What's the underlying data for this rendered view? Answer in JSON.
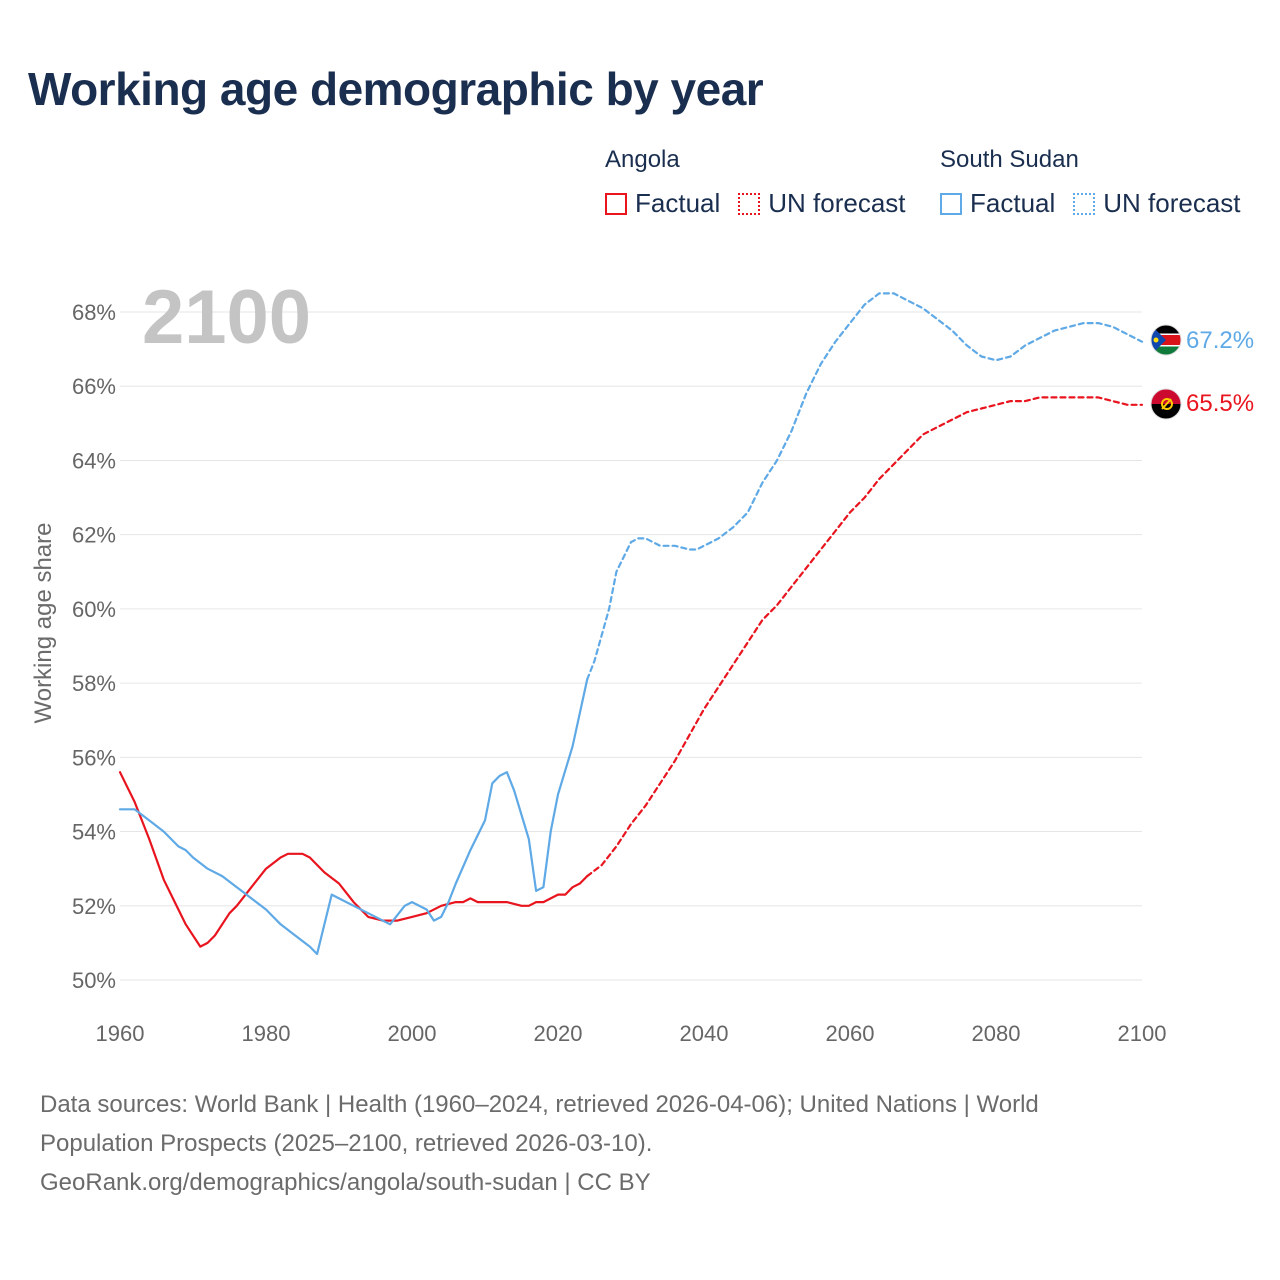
{
  "title": "Working age demographic by year",
  "year_display": "2100",
  "legend": {
    "angola": {
      "name": "Angola",
      "factual": "Factual",
      "forecast": "UN forecast",
      "color": "#e8141e"
    },
    "south_sudan": {
      "name": "South Sudan",
      "factual": "Factual",
      "forecast": "UN forecast",
      "color": "#5ea9e6"
    }
  },
  "end_labels": {
    "angola": "65.5%",
    "south_sudan": "67.2%"
  },
  "footer": {
    "line1": "Data sources: World Bank | Health (1960–2024, retrieved 2026-04-06); United Nations | World",
    "line2": "Population Prospects (2025–2100, retrieved 2026-03-10).",
    "line3": "GeoRank.org/demographics/angola/south-sudan | CC BY"
  },
  "chart_data": {
    "type": "line",
    "title": "Working age demographic by year",
    "xlabel": "",
    "ylabel": "Working age share",
    "xlim": [
      1960,
      2100
    ],
    "ylim": [
      49.5,
      69
    ],
    "xticks": [
      1960,
      1980,
      2000,
      2020,
      2040,
      2060,
      2080,
      2100
    ],
    "yticks": [
      50,
      52,
      54,
      56,
      58,
      60,
      62,
      64,
      66,
      68
    ],
    "ytick_labels": [
      "50%",
      "52%",
      "54%",
      "56%",
      "58%",
      "60%",
      "62%",
      "64%",
      "66%",
      "68%"
    ],
    "grid": true,
    "series": [
      {
        "name": "Angola",
        "kind": "Factual",
        "color": "#e8141e",
        "dash": "solid",
        "points": [
          [
            1960,
            55.6
          ],
          [
            1962,
            54.8
          ],
          [
            1964,
            53.8
          ],
          [
            1966,
            52.7
          ],
          [
            1968,
            51.9
          ],
          [
            1969,
            51.5
          ],
          [
            1971,
            50.9
          ],
          [
            1972,
            51.0
          ],
          [
            1973,
            51.2
          ],
          [
            1975,
            51.8
          ],
          [
            1976,
            52.0
          ],
          [
            1978,
            52.5
          ],
          [
            1980,
            53.0
          ],
          [
            1982,
            53.3
          ],
          [
            1983,
            53.4
          ],
          [
            1985,
            53.4
          ],
          [
            1986,
            53.3
          ],
          [
            1988,
            52.9
          ],
          [
            1990,
            52.6
          ],
          [
            1992,
            52.1
          ],
          [
            1994,
            51.7
          ],
          [
            1996,
            51.6
          ],
          [
            1998,
            51.6
          ],
          [
            2000,
            51.7
          ],
          [
            2002,
            51.8
          ],
          [
            2004,
            52.0
          ],
          [
            2006,
            52.1
          ],
          [
            2007,
            52.1
          ],
          [
            2008,
            52.2
          ],
          [
            2009,
            52.1
          ],
          [
            2011,
            52.1
          ],
          [
            2013,
            52.1
          ],
          [
            2015,
            52.0
          ],
          [
            2016,
            52.0
          ],
          [
            2017,
            52.1
          ],
          [
            2018,
            52.1
          ],
          [
            2019,
            52.2
          ],
          [
            2020,
            52.3
          ],
          [
            2021,
            52.3
          ],
          [
            2022,
            52.5
          ],
          [
            2023,
            52.6
          ],
          [
            2024,
            52.8
          ]
        ]
      },
      {
        "name": "Angola",
        "kind": "UN forecast",
        "color": "#e8141e",
        "dash": "dashed",
        "points": [
          [
            2024,
            52.8
          ],
          [
            2026,
            53.1
          ],
          [
            2028,
            53.6
          ],
          [
            2030,
            54.2
          ],
          [
            2032,
            54.7
          ],
          [
            2034,
            55.3
          ],
          [
            2036,
            55.9
          ],
          [
            2038,
            56.6
          ],
          [
            2040,
            57.3
          ],
          [
            2042,
            57.9
          ],
          [
            2044,
            58.5
          ],
          [
            2046,
            59.1
          ],
          [
            2048,
            59.7
          ],
          [
            2050,
            60.1
          ],
          [
            2052,
            60.6
          ],
          [
            2054,
            61.1
          ],
          [
            2056,
            61.6
          ],
          [
            2058,
            62.1
          ],
          [
            2060,
            62.6
          ],
          [
            2062,
            63.0
          ],
          [
            2064,
            63.5
          ],
          [
            2066,
            63.9
          ],
          [
            2068,
            64.3
          ],
          [
            2070,
            64.7
          ],
          [
            2072,
            64.9
          ],
          [
            2074,
            65.1
          ],
          [
            2076,
            65.3
          ],
          [
            2078,
            65.4
          ],
          [
            2080,
            65.5
          ],
          [
            2082,
            65.6
          ],
          [
            2084,
            65.6
          ],
          [
            2086,
            65.7
          ],
          [
            2088,
            65.7
          ],
          [
            2090,
            65.7
          ],
          [
            2092,
            65.7
          ],
          [
            2094,
            65.7
          ],
          [
            2096,
            65.6
          ],
          [
            2098,
            65.5
          ],
          [
            2100,
            65.5
          ]
        ]
      },
      {
        "name": "South Sudan",
        "kind": "Factual",
        "color": "#5ea9e6",
        "dash": "solid",
        "points": [
          [
            1960,
            54.6
          ],
          [
            1962,
            54.6
          ],
          [
            1964,
            54.3
          ],
          [
            1966,
            54.0
          ],
          [
            1968,
            53.6
          ],
          [
            1969,
            53.5
          ],
          [
            1970,
            53.3
          ],
          [
            1972,
            53.0
          ],
          [
            1974,
            52.8
          ],
          [
            1976,
            52.5
          ],
          [
            1978,
            52.2
          ],
          [
            1980,
            51.9
          ],
          [
            1982,
            51.5
          ],
          [
            1984,
            51.2
          ],
          [
            1986,
            50.9
          ],
          [
            1987,
            50.7
          ],
          [
            1989,
            52.3
          ],
          [
            1990,
            52.2
          ],
          [
            1992,
            52.0
          ],
          [
            1994,
            51.8
          ],
          [
            1996,
            51.6
          ],
          [
            1997,
            51.5
          ],
          [
            1999,
            52.0
          ],
          [
            2000,
            52.1
          ],
          [
            2002,
            51.9
          ],
          [
            2003,
            51.6
          ],
          [
            2004,
            51.7
          ],
          [
            2005,
            52.1
          ],
          [
            2006,
            52.6
          ],
          [
            2008,
            53.5
          ],
          [
            2010,
            54.3
          ],
          [
            2011,
            55.3
          ],
          [
            2012,
            55.5
          ],
          [
            2013,
            55.6
          ],
          [
            2014,
            55.1
          ],
          [
            2016,
            53.8
          ],
          [
            2017,
            52.4
          ],
          [
            2018,
            52.5
          ],
          [
            2019,
            54.0
          ],
          [
            2020,
            55.0
          ],
          [
            2022,
            56.3
          ],
          [
            2024,
            58.1
          ]
        ]
      },
      {
        "name": "South Sudan",
        "kind": "UN forecast",
        "color": "#5ea9e6",
        "dash": "dashed",
        "points": [
          [
            2024,
            58.1
          ],
          [
            2025,
            58.6
          ],
          [
            2027,
            60.0
          ],
          [
            2028,
            61.0
          ],
          [
            2030,
            61.8
          ],
          [
            2031,
            61.9
          ],
          [
            2032,
            61.9
          ],
          [
            2034,
            61.7
          ],
          [
            2036,
            61.7
          ],
          [
            2038,
            61.6
          ],
          [
            2039,
            61.6
          ],
          [
            2040,
            61.7
          ],
          [
            2042,
            61.9
          ],
          [
            2044,
            62.2
          ],
          [
            2046,
            62.6
          ],
          [
            2048,
            63.4
          ],
          [
            2050,
            64.0
          ],
          [
            2052,
            64.8
          ],
          [
            2054,
            65.8
          ],
          [
            2056,
            66.6
          ],
          [
            2058,
            67.2
          ],
          [
            2060,
            67.7
          ],
          [
            2062,
            68.2
          ],
          [
            2064,
            68.5
          ],
          [
            2066,
            68.5
          ],
          [
            2068,
            68.3
          ],
          [
            2070,
            68.1
          ],
          [
            2072,
            67.8
          ],
          [
            2074,
            67.5
          ],
          [
            2076,
            67.1
          ],
          [
            2078,
            66.8
          ],
          [
            2080,
            66.7
          ],
          [
            2082,
            66.8
          ],
          [
            2084,
            67.1
          ],
          [
            2086,
            67.3
          ],
          [
            2088,
            67.5
          ],
          [
            2090,
            67.6
          ],
          [
            2092,
            67.7
          ],
          [
            2094,
            67.7
          ],
          [
            2096,
            67.6
          ],
          [
            2098,
            67.4
          ],
          [
            2100,
            67.2
          ]
        ]
      }
    ]
  }
}
